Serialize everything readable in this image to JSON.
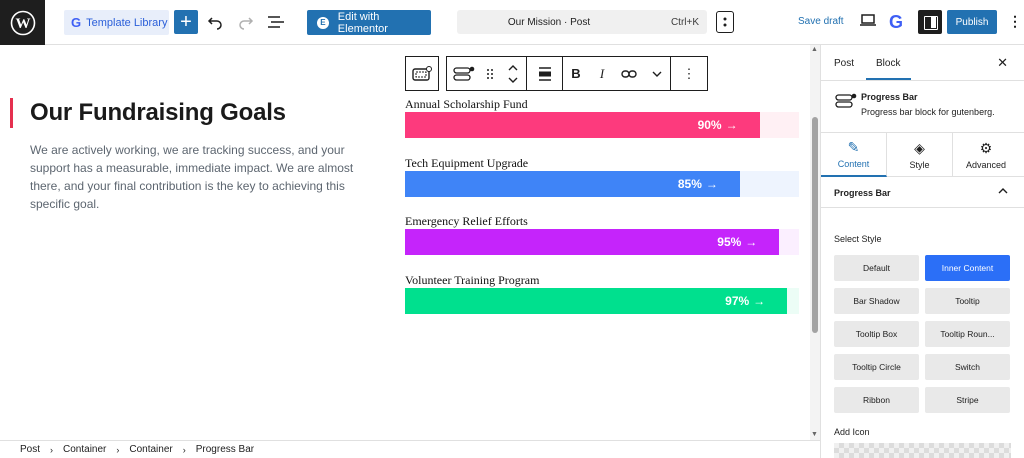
{
  "topbar": {
    "template_library_label": "Template Library",
    "elementor_label": "Edit with Elementor",
    "document_title": "Our Mission · Post",
    "shortcut": "Ctrl+K",
    "save_draft_label": "Save draft",
    "publish_label": "Publish"
  },
  "content": {
    "heading": "Our Fundraising Goals",
    "description": "We are actively working, we are tracking success, and your support has a measurable, immediate impact. We are almost there, and your final contribution is the key to achieving this specific goal."
  },
  "progress_bars": [
    {
      "label": "Annual Scholarship Fund",
      "percent": 90,
      "value_text": "90%",
      "color": "#fd3a7d",
      "track": "#fff0f4"
    },
    {
      "label": "Tech Equipment Upgrade",
      "percent": 85,
      "value_text": "85%",
      "color": "#3f84f7",
      "track": "#eef4fe"
    },
    {
      "label": "Emergency Relief Efforts",
      "percent": 95,
      "value_text": "95%",
      "color": "#c524fb",
      "track": "#fbefff"
    },
    {
      "label": "Volunteer Training Program",
      "percent": 97,
      "value_text": "97%",
      "color": "#00e08e",
      "track": "#ecfdf6"
    }
  ],
  "breadcrumb": [
    "Post",
    "Container",
    "Container",
    "Progress Bar"
  ],
  "sidebar": {
    "tabs": [
      "Post",
      "Block"
    ],
    "block_name": "Progress Bar",
    "block_description": "Progress bar block for gutenberg.",
    "panel_tabs": [
      {
        "label": "Content",
        "icon": "pencil-icon"
      },
      {
        "label": "Style",
        "icon": "paint-bucket-icon"
      },
      {
        "label": "Advanced",
        "icon": "gear-icon"
      }
    ],
    "section_title": "Progress Bar",
    "select_style_label": "Select Style",
    "styles": [
      "Default",
      "Inner Content",
      "Bar Shadow",
      "Tooltip",
      "Tooltip Box",
      "Tooltip Roun...",
      "Tooltip Circle",
      "Switch",
      "Ribbon",
      "Stripe"
    ],
    "active_style": "Inner Content",
    "add_icon_label": "Add Icon"
  }
}
